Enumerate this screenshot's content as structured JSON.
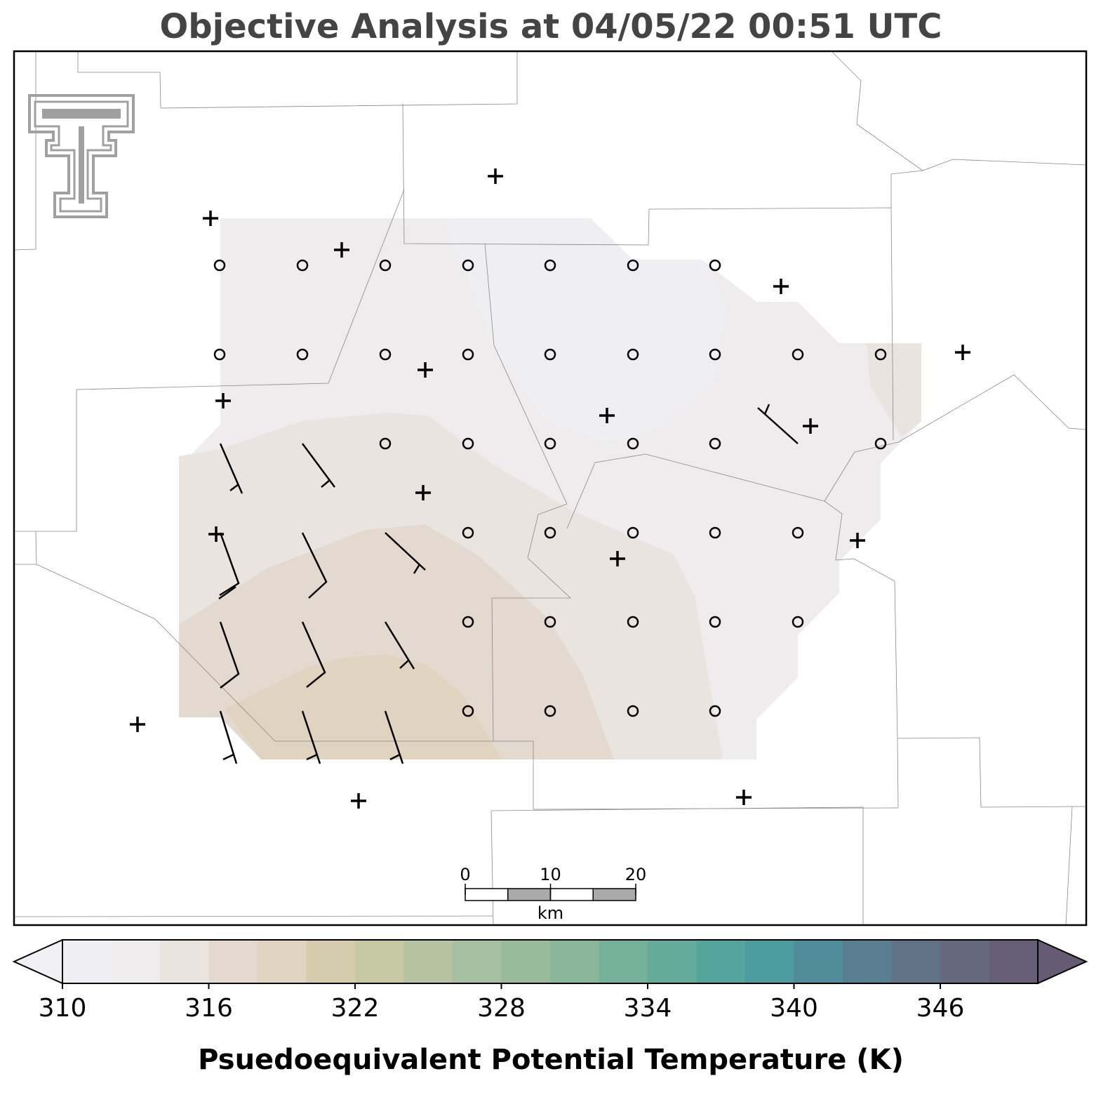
{
  "title": "Objective Analysis at 04/05/22 00:51 UTC",
  "colorbar": {
    "range": [
      310,
      350
    ],
    "ticks": [
      310,
      316,
      322,
      328,
      334,
      340,
      346
    ],
    "colors": [
      "#efeff3",
      "#eeecec",
      "#e9e4e0",
      "#e4d9ce",
      "#e0d3bf",
      "#d4ccac",
      "#c6c8a4",
      "#b5c3a3",
      "#a6bfa0",
      "#98bb9b",
      "#89b69a",
      "#77b09a",
      "#64ab9b",
      "#55a59d",
      "#4c9b9e",
      "#4f8b99",
      "#597e91",
      "#617287",
      "#65697e",
      "#665e76"
    ],
    "under_color": "#f1f1f5",
    "over_color": "#675a73",
    "label": "Psuedoequivalent Potential Temperature (K)"
  },
  "scale_bar": {
    "ticks": [
      0,
      10,
      20
    ],
    "unit": "km"
  }
}
